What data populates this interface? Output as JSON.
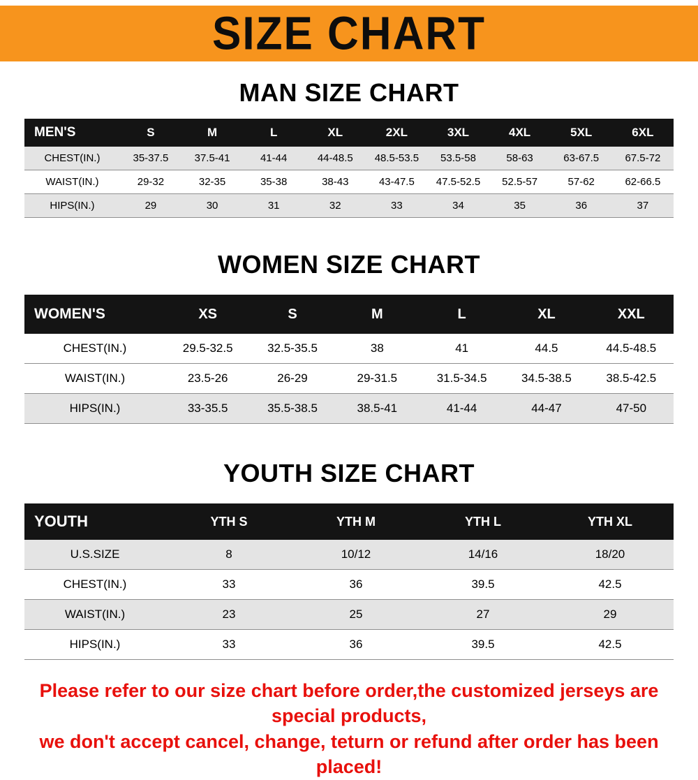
{
  "banner": {
    "title": "SIZE CHART"
  },
  "colors": {
    "banner_bg": "#f7941d",
    "table_header_bg": "#141414",
    "table_header_text": "#ffffff",
    "row_shade": "#e4e4e4",
    "note_red": "#e8100c"
  },
  "sections": [
    {
      "heading": "MAN SIZE CHART",
      "table": {
        "header": [
          "MEN'S",
          "S",
          "M",
          "L",
          "XL",
          "2XL",
          "3XL",
          "4XL",
          "5XL",
          "6XL"
        ],
        "rows": [
          [
            "CHEST(IN.)",
            "35-37.5",
            "37.5-41",
            "41-44",
            "44-48.5",
            "48.5-53.5",
            "53.5-58",
            "58-63",
            "63-67.5",
            "67.5-72"
          ],
          [
            "WAIST(IN.)",
            "29-32",
            "32-35",
            "35-38",
            "38-43",
            "43-47.5",
            "47.5-52.5",
            "52.5-57",
            "57-62",
            "62-66.5"
          ],
          [
            "HIPS(IN.)",
            "29",
            "30",
            "31",
            "32",
            "33",
            "34",
            "35",
            "36",
            "37"
          ]
        ]
      }
    },
    {
      "heading": "WOMEN SIZE CHART",
      "table": {
        "header": [
          "WOMEN'S",
          "XS",
          "S",
          "M",
          "L",
          "XL",
          "XXL"
        ],
        "rows": [
          [
            "CHEST(IN.)",
            "29.5-32.5",
            "32.5-35.5",
            "38",
            "41",
            "44.5",
            "44.5-48.5"
          ],
          [
            "WAIST(IN.)",
            "23.5-26",
            "26-29",
            "29-31.5",
            "31.5-34.5",
            "34.5-38.5",
            "38.5-42.5"
          ],
          [
            "HIPS(IN.)",
            "33-35.5",
            "35.5-38.5",
            "38.5-41",
            "41-44",
            "44-47",
            "47-50"
          ]
        ]
      }
    },
    {
      "heading": "YOUTH SIZE CHART",
      "table": {
        "header": [
          "YOUTH",
          "YTH S",
          "YTH M",
          "YTH L",
          "YTH XL"
        ],
        "rows": [
          [
            "U.S.SIZE",
            "8",
            "10/12",
            "14/16",
            "18/20"
          ],
          [
            "CHEST(IN.)",
            "33",
            "36",
            "39.5",
            "42.5"
          ],
          [
            "WAIST(IN.)",
            "23",
            "25",
            "27",
            "29"
          ],
          [
            "HIPS(IN.)",
            "33",
            "36",
            "39.5",
            "42.5"
          ]
        ]
      }
    }
  ],
  "note": {
    "line1": "Please refer to our size chart before order,the customized jerseys are special products,",
    "line2": "we don't accept cancel, change, teturn or refund after order has been placed!"
  }
}
